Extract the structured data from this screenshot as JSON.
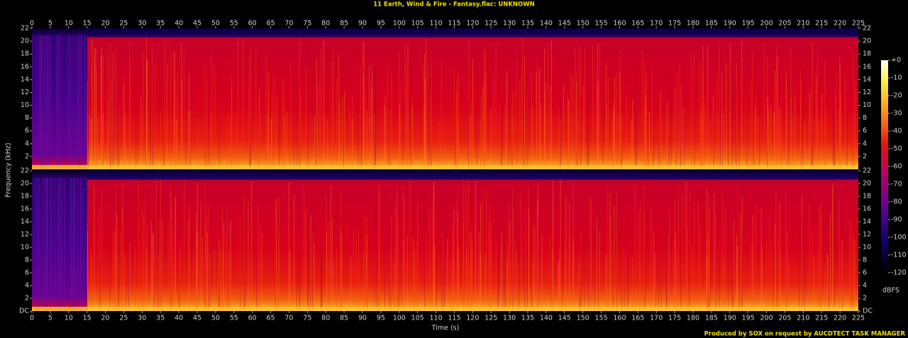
{
  "chart_data": {
    "type": "spectrogram",
    "title": "11 Earth, Wind & Fire - Fantasy.flac: UNKNOWN",
    "xlabel": "Time (s)",
    "ylabel": "Frequency (kHz)",
    "xlim": [
      0,
      225
    ],
    "xticks": [
      0,
      5,
      10,
      15,
      20,
      25,
      30,
      35,
      40,
      45,
      50,
      55,
      60,
      65,
      70,
      75,
      80,
      85,
      90,
      95,
      100,
      105,
      110,
      115,
      120,
      125,
      130,
      135,
      140,
      145,
      150,
      155,
      160,
      165,
      170,
      175,
      180,
      185,
      190,
      195,
      200,
      205,
      210,
      215,
      220,
      225
    ],
    "channels": [
      {
        "ylim": [
          0,
          22
        ],
        "yticks": [
          2,
          4,
          6,
          8,
          10,
          12,
          14,
          16,
          18,
          20,
          22
        ]
      },
      {
        "ylim": [
          0,
          22
        ],
        "yticks": [
          {
            "value": 0,
            "label": "DC"
          },
          2,
          4,
          6,
          8,
          10,
          12,
          14,
          16,
          18,
          20,
          22
        ]
      }
    ],
    "colorbar": {
      "label": "dBFS",
      "lim": [
        -120,
        0
      ],
      "ticks": [
        {
          "value": 0,
          "label": "+0"
        },
        -10,
        -20,
        -30,
        -40,
        -50,
        -60,
        -70,
        -80,
        -90,
        -100,
        -110,
        -120
      ]
    },
    "footer": "Produced by SOX on request by AUCDTECT TASK MANAGER"
  }
}
